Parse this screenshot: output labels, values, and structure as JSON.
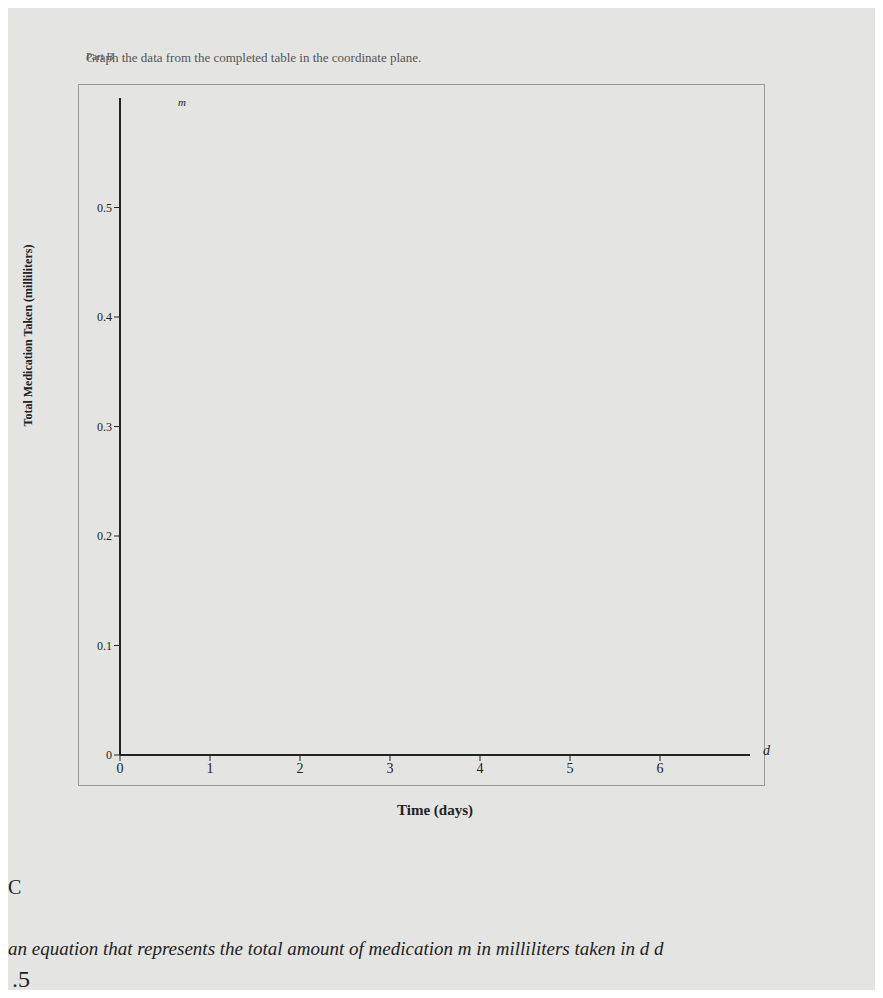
{
  "chart_data": {
    "type": "scatter",
    "subtitle": "Part B",
    "title": "Graph the data from the completed table in the coordinate plane.",
    "x_label": "Time (days)",
    "y_label": "Total Medication Taken (milliliters)",
    "x_axis_symbol": "d",
    "y_axis_symbol": "m",
    "x": [],
    "values": [],
    "xlim": [
      0,
      7
    ],
    "xticks": [
      0,
      1,
      2,
      3,
      4,
      5,
      6
    ],
    "ylim": [
      0,
      0.6
    ],
    "yticks": [
      0,
      0.1,
      0.2,
      0.3,
      0.4,
      0.5
    ],
    "grid": false,
    "annotations": [
      "C",
      "an equation that represents the total amount of medication m in milliliters taken in d d",
      ".5"
    ]
  }
}
